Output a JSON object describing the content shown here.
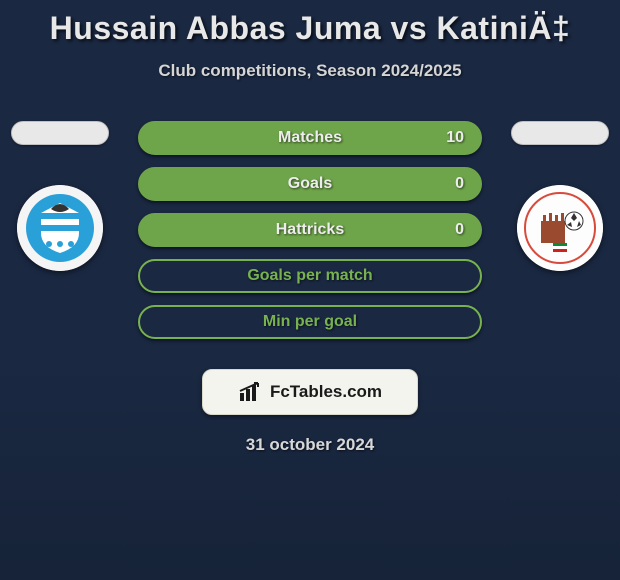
{
  "title": "Hussain Abbas Juma vs KatiniÄ‡",
  "subtitle": "Club competitions, Season 2024/2025",
  "date": "31 october 2024",
  "brand": "FcTables.com",
  "colors": {
    "row_filled_border": "#6fa54a",
    "row_filled_bg": "#6fa54a",
    "row_empty_border": "#78b250",
    "row_label_filled": "#ededed",
    "row_label_empty": "#78b250",
    "row_value": "#ececec",
    "badge_left_primary": "#2aa0d8",
    "badge_left_secondary": "#ffffff",
    "badge_right_primary": "#d84a3c",
    "badge_right_bg": "#fdfdfd"
  },
  "stats": [
    {
      "label": "Matches",
      "value": "10",
      "filled": true
    },
    {
      "label": "Goals",
      "value": "0",
      "filled": true
    },
    {
      "label": "Hattricks",
      "value": "0",
      "filled": true
    },
    {
      "label": "Goals per match",
      "value": "",
      "filled": false
    },
    {
      "label": "Min per goal",
      "value": "",
      "filled": false
    }
  ]
}
